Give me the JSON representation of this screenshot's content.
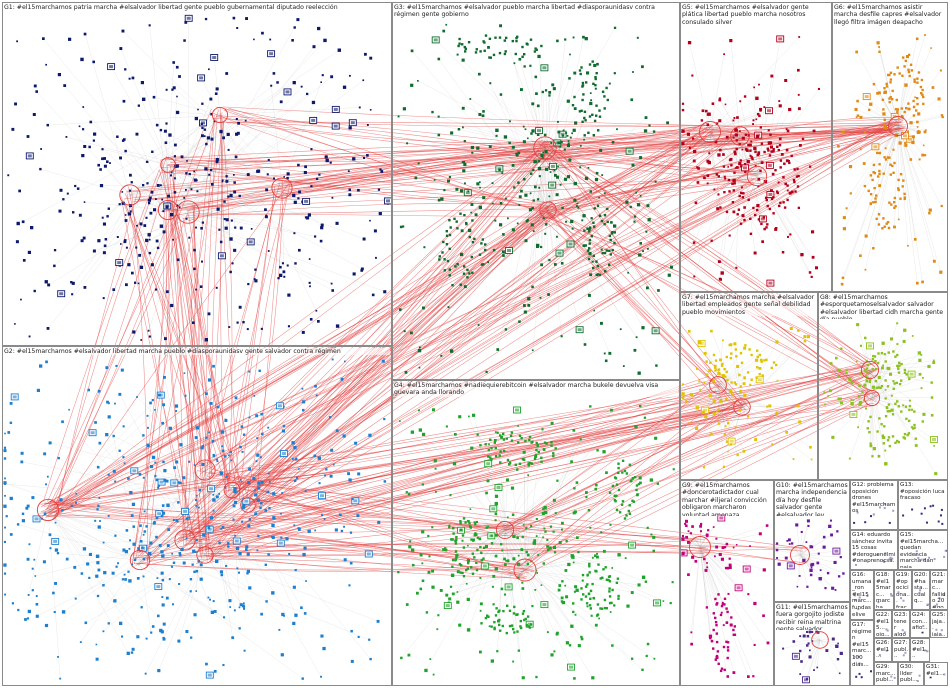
{
  "groups": [
    {
      "id": "G1",
      "label": "G1: #el15marchamos patria marcha #elsalvador libertad gente pueblo gubernamental diputado reelección",
      "color": "#0d1a6b"
    },
    {
      "id": "G2",
      "label": "G2: #el15marchamos #elsalvador libertad marcha pueblo #diasporaunidasv gente salvador contra régimen",
      "color": "#1c7fcf"
    },
    {
      "id": "G3",
      "label": "G3: #el15marchamos #elsalvador pueblo marcha libertad #diasporaunidasv contra régimen gente gobierno",
      "color": "#0f6b2e"
    },
    {
      "id": "G4",
      "label": "G4: #el15marchamos #nadiequierebitcoin #elsalvador marcha bukele devuelva visa guevara anda llorando",
      "color": "#1fa32c"
    },
    {
      "id": "G5",
      "label": "G5: #el15marchamos #elsalvador gente plática libertad pueblo marcha nosotros consulado silver",
      "color": "#b3001b"
    },
    {
      "id": "G6",
      "label": "G6: #el15marchamos asistir marcha desfile capres #elsalvador llegó filtra imágen deapacho",
      "color": "#e08a16"
    },
    {
      "id": "G7",
      "label": "G7: #el15marchamos marcha #elsalvador libertad empleados gente señal debilidad pueblo movimientos",
      "color": "#e0c400"
    },
    {
      "id": "G8",
      "label": "G8: #el15marchamos #esporquetamoselsalvador salvador #elsalvador libertad cidh marcha gente día pueblo",
      "color": "#8cc21e"
    },
    {
      "id": "G9",
      "label": "G9: #el15marchamos #doncerotadictador cual marchar #iljeral convicción obligaron marcharon voluntad amenaza",
      "color": "#c2007a"
    },
    {
      "id": "G10",
      "label": "G10: #el15marchamos marcha independencia día hoy desfile salvador gente #elsalvador ley",
      "color": "#6a1b9a"
    },
    {
      "id": "G11",
      "label": "G11: #el15marchamos fuera gorgojito jodiste recibir reina maltrina gente salvador sabemos",
      "color": "#4a2a8a"
    },
    {
      "id": "G12",
      "label": "G12: problema oposición drones #el15marchamos",
      "color": "#444444"
    },
    {
      "id": "G13",
      "label": "G13: #oposición luca fracaso",
      "color": "#444444"
    },
    {
      "id": "G14",
      "label": "G14: eduardo sánchez invita 15 cosas #deroguenelmi #onaprenocsa...",
      "color": "#444444"
    },
    {
      "id": "G15",
      "label": "G15: #el15marcha... quedan evidencia marcha dan paja...",
      "color": "#444444"
    },
    {
      "id": "G16",
      "label": "G16: umana_ron #el15marc... fundaselive aca tengo...",
      "color": "#444444"
    },
    {
      "id": "G17",
      "label": "G17: régimen #el15marc... 100 días...",
      "color": "#444444"
    },
    {
      "id": "G18",
      "label": "G18: #el15marc... marcha libertad justicia...",
      "color": "#444444"
    },
    {
      "id": "G19",
      "label": "G19: #opociciona... fracaso #el15marcham... luego...",
      "color": "#444444"
    },
    {
      "id": "G20",
      "label": "G20: #hasta... cualq...",
      "color": "#444444"
    },
    {
      "id": "G21",
      "label": "G21: marc... fallido 20 #gob... sup...",
      "color": "#444444"
    },
    {
      "id": "G22",
      "label": "G22: #el15... ojo... adju...",
      "color": "#444444"
    },
    {
      "id": "G23",
      "label": "G23: tener algo boca...",
      "color": "#444444"
    },
    {
      "id": "G24",
      "label": "G24: con... afio...",
      "color": "#444444"
    },
    {
      "id": "G25",
      "label": "G25: jaja... jaja...",
      "color": "#444444"
    },
    {
      "id": "G26",
      "label": "G26: #el1... pleni...",
      "color": "#444444"
    },
    {
      "id": "G27",
      "label": "G27: publ... tenc...",
      "color": "#444444"
    },
    {
      "id": "G28",
      "label": "G28: #el1...",
      "color": "#444444"
    },
    {
      "id": "G29",
      "label": "G29: marc... publ...",
      "color": "#444444"
    },
    {
      "id": "G30",
      "label": "G30: llder publ...",
      "color": "#444444"
    },
    {
      "id": "G31",
      "label": "G31: #el1...",
      "color": "#444444"
    }
  ],
  "edge_colors": {
    "between_groups": "#e2403f",
    "within_groups": "#c8c8c8"
  },
  "node_shapes": [
    "square-node",
    "avatar-node",
    "hub-circle"
  ]
}
